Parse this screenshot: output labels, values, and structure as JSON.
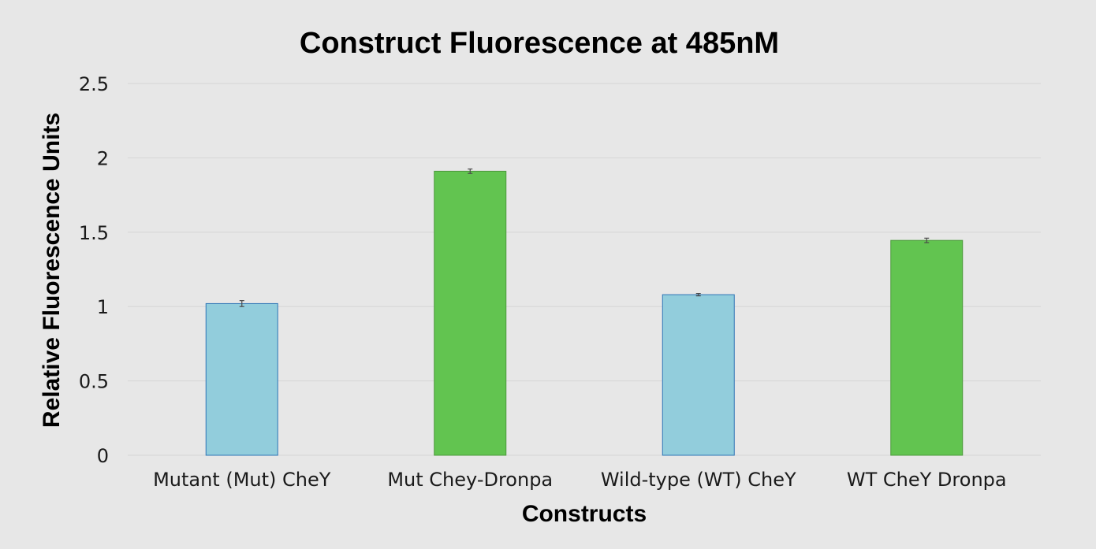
{
  "chart_data": {
    "type": "bar",
    "title": "Construct Fluorescence at 485nM",
    "xlabel": "Constructs",
    "ylabel": "Relative Fluorescence Units",
    "categories": [
      "Mutant (Mut) CheY",
      "Mut Chey-Dronpa",
      "Wild-type (WT) CheY",
      "WT CheY Dronpa"
    ],
    "values": [
      1.02,
      1.91,
      1.08,
      1.445
    ],
    "errors": [
      0.02,
      0.015,
      0.008,
      0.015
    ],
    "bar_colors": [
      "#92cddc",
      "#62c450",
      "#92cddc",
      "#62c450"
    ],
    "bar_edge_colors": [
      "#2e75b6",
      "#4c9a3c",
      "#2e75b6",
      "#4c9a3c"
    ],
    "ylim": [
      0,
      2.5
    ],
    "yticks": [
      0,
      0.5,
      1,
      1.5,
      2,
      2.5
    ],
    "ytick_labels": [
      "0",
      "0.5",
      "1",
      "1.5",
      "2",
      "2.5"
    ],
    "grid": true,
    "legend": "none"
  }
}
